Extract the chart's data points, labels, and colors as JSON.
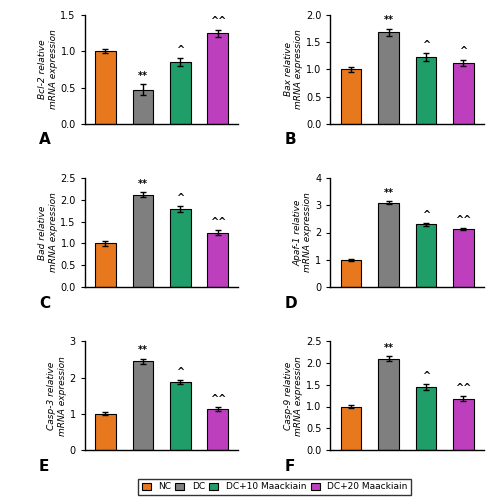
{
  "panels": [
    {
      "label": "A",
      "ylabel_italic": "Bcl-2",
      "ylabel_rest": " relative\nmRNA expression",
      "values": [
        1.0,
        0.47,
        0.85,
        1.25
      ],
      "errors": [
        0.03,
        0.08,
        0.06,
        0.05
      ],
      "ylim": [
        0,
        1.5
      ],
      "yticks": [
        0.0,
        0.5,
        1.0,
        1.5
      ],
      "ytick_labels": [
        "0.0",
        "0.5",
        "1.0",
        "1.5"
      ],
      "annotations": [
        "",
        "**",
        "^",
        "^^"
      ]
    },
    {
      "label": "B",
      "ylabel_italic": "Bax",
      "ylabel_rest": " relative\nmRNA expression",
      "values": [
        1.0,
        1.68,
        1.23,
        1.12
      ],
      "errors": [
        0.04,
        0.07,
        0.07,
        0.06
      ],
      "ylim": [
        0,
        2.0
      ],
      "yticks": [
        0.0,
        0.5,
        1.0,
        1.5,
        2.0
      ],
      "ytick_labels": [
        "0.0",
        "0.5",
        "1.0",
        "1.5",
        "2.0"
      ],
      "annotations": [
        "",
        "**",
        "^",
        "^"
      ]
    },
    {
      "label": "C",
      "ylabel_italic": "Bad",
      "ylabel_rest": " relative\nmRNA expression",
      "values": [
        1.0,
        2.12,
        1.78,
        1.25
      ],
      "errors": [
        0.05,
        0.06,
        0.07,
        0.06
      ],
      "ylim": [
        0,
        2.5
      ],
      "yticks": [
        0.0,
        0.5,
        1.0,
        1.5,
        2.0,
        2.5
      ],
      "ytick_labels": [
        "0.0",
        "0.5",
        "1.0",
        "1.5",
        "2.0",
        "2.5"
      ],
      "annotations": [
        "",
        "**",
        "^",
        "^^"
      ]
    },
    {
      "label": "D",
      "ylabel_italic": "Apaf-1",
      "ylabel_rest": " relative\nmRNA expression",
      "values": [
        1.0,
        3.1,
        2.3,
        2.12
      ],
      "errors": [
        0.04,
        0.05,
        0.05,
        0.04
      ],
      "ylim": [
        0,
        4
      ],
      "yticks": [
        0,
        1,
        2,
        3,
        4
      ],
      "ytick_labels": [
        "0",
        "1",
        "2",
        "3",
        "4"
      ],
      "annotations": [
        "",
        "**",
        "^",
        "^^"
      ]
    },
    {
      "label": "E",
      "ylabel_italic": "Casp-3",
      "ylabel_rest": " relative\nmRNA expression",
      "values": [
        1.0,
        2.45,
        1.87,
        1.13
      ],
      "errors": [
        0.04,
        0.07,
        0.05,
        0.05
      ],
      "ylim": [
        0,
        3
      ],
      "yticks": [
        0,
        1,
        2,
        3
      ],
      "ytick_labels": [
        "0",
        "1",
        "2",
        "3"
      ],
      "annotations": [
        "",
        "**",
        "^",
        "^^"
      ]
    },
    {
      "label": "F",
      "ylabel_italic": "Casp-9",
      "ylabel_rest": " relative\nmRNA expression",
      "values": [
        1.0,
        2.1,
        1.45,
        1.18
      ],
      "errors": [
        0.04,
        0.06,
        0.06,
        0.05
      ],
      "ylim": [
        0,
        2.5
      ],
      "yticks": [
        0.0,
        0.5,
        1.0,
        1.5,
        2.0,
        2.5
      ],
      "ytick_labels": [
        "0.0",
        "0.5",
        "1.0",
        "1.5",
        "2.0",
        "2.5"
      ],
      "annotations": [
        "",
        "**",
        "^",
        "^^"
      ]
    }
  ],
  "bar_colors": [
    "#E8781E",
    "#7F7F7F",
    "#1F9E6A",
    "#BE3FBE"
  ],
  "legend_labels": [
    "NC",
    "DC",
    "DC+10 Maackiain",
    "DC+20 Maackiain"
  ],
  "bar_width": 0.55,
  "x_positions": [
    0,
    1,
    2,
    3
  ],
  "background_color": "#ffffff",
  "edge_color": "#000000"
}
